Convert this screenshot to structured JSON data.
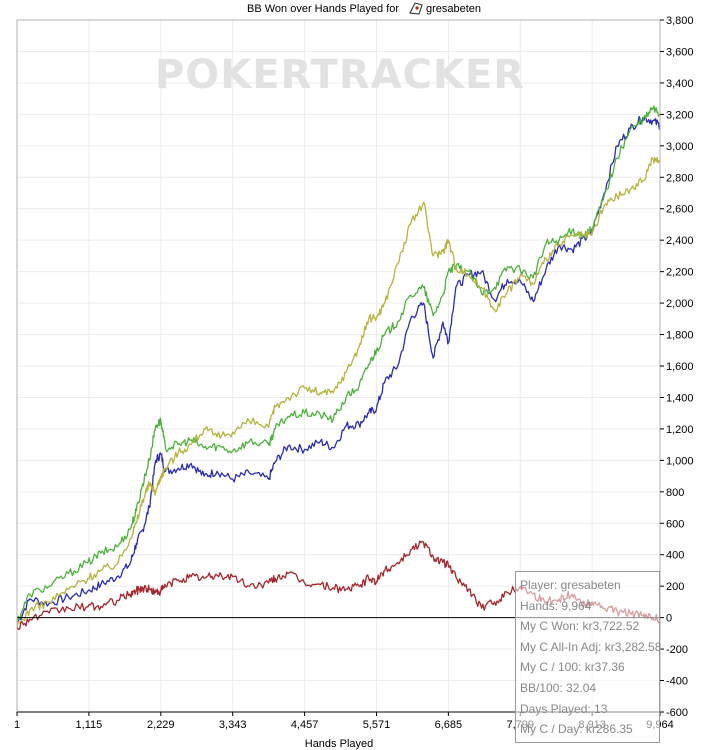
{
  "watermark": "POKERTRACKER",
  "info": {
    "player": "Player: gresabeten",
    "hands": "Hands: 9,964",
    "my_c_won": "My C Won: kr3,722.52",
    "my_c_allin_adj": "My C All-In Adj: kr3,282.58",
    "my_c_per_100": "My C / 100: kr37.36",
    "bb_per_100": "BB/100: 32.04",
    "days_played": "Days Played: 13",
    "my_c_per_day": "My C / Day: kr286.35"
  },
  "chart_data": {
    "type": "line",
    "title": "BB Won over Hands Played for gresabeten",
    "xlabel": "Hands Played",
    "ylabel": "",
    "xlim": [
      1,
      9964
    ],
    "ylim": [
      -600,
      3800
    ],
    "x_ticks": [
      "1",
      "1,115",
      "2,229",
      "3,343",
      "4,457",
      "5,571",
      "6,685",
      "7,799",
      "8,913",
      "9,964"
    ],
    "y_ticks": [
      "-600",
      "-400",
      "-200",
      "0",
      "200",
      "400",
      "600",
      "800",
      "1,000",
      "1,200",
      "1,400",
      "1,600",
      "1,800",
      "2,000",
      "2,200",
      "2,400",
      "2,600",
      "2,800",
      "3,000",
      "3,200",
      "3,400",
      "3,600",
      "3,800"
    ],
    "grid": true,
    "legend": "none",
    "series": [
      {
        "color": "#2b2db0",
        "x": [
          1,
          200,
          500,
          800,
          1100,
          1300,
          1550,
          1750,
          1850,
          1950,
          2050,
          2150,
          2229,
          2300,
          2500,
          2700,
          2900,
          3100,
          3343,
          3600,
          3900,
          4000,
          4200,
          4457,
          4700,
          4900,
          5100,
          5300,
          5450,
          5571,
          5700,
          5900,
          6100,
          6300,
          6450,
          6600,
          6685,
          6800,
          7000,
          7200,
          7400,
          7600,
          7800,
          8000,
          8200,
          8400,
          8600,
          8800,
          8913,
          9100,
          9300,
          9500,
          9700,
          9850,
          9964
        ],
        "y": [
          -40,
          120,
          90,
          130,
          170,
          210,
          260,
          340,
          470,
          560,
          700,
          1000,
          1040,
          930,
          950,
          980,
          900,
          930,
          880,
          920,
          880,
          990,
          1090,
          1070,
          1120,
          1080,
          1220,
          1230,
          1300,
          1330,
          1500,
          1600,
          1900,
          2000,
          1650,
          1880,
          1750,
          2100,
          2180,
          2200,
          2020,
          2150,
          2140,
          2010,
          2220,
          2370,
          2340,
          2410,
          2460,
          2700,
          3000,
          3110,
          3180,
          3160,
          3130
        ]
      },
      {
        "color": "#4db23d",
        "x": [
          1,
          200,
          500,
          800,
          1100,
          1300,
          1550,
          1750,
          1850,
          1950,
          2050,
          2150,
          2229,
          2300,
          2500,
          2700,
          2900,
          3100,
          3343,
          3600,
          3900,
          4000,
          4200,
          4457,
          4700,
          4900,
          5100,
          5300,
          5450,
          5571,
          5700,
          5900,
          6100,
          6300,
          6450,
          6600,
          6685,
          6800,
          7000,
          7200,
          7400,
          7600,
          7800,
          8000,
          8200,
          8400,
          8600,
          8800,
          8913,
          9100,
          9300,
          9500,
          9700,
          9850,
          9964
        ],
        "y": [
          -20,
          150,
          200,
          280,
          350,
          410,
          450,
          560,
          680,
          850,
          1000,
          1220,
          1250,
          1080,
          1100,
          1130,
          1080,
          1090,
          1060,
          1120,
          1100,
          1200,
          1280,
          1300,
          1290,
          1260,
          1400,
          1470,
          1610,
          1700,
          1800,
          1880,
          2050,
          2100,
          1920,
          2050,
          2200,
          2230,
          2200,
          2060,
          2100,
          2230,
          2210,
          2160,
          2380,
          2400,
          2460,
          2430,
          2470,
          2680,
          2920,
          3100,
          3160,
          3240,
          3200
        ]
      },
      {
        "color": "#b6b33e",
        "x": [
          1,
          200,
          500,
          800,
          1100,
          1300,
          1550,
          1750,
          1850,
          1950,
          2050,
          2150,
          2229,
          2300,
          2500,
          2700,
          2900,
          3100,
          3343,
          3600,
          3900,
          4000,
          4200,
          4457,
          4700,
          4900,
          5100,
          5300,
          5450,
          5571,
          5700,
          5900,
          6100,
          6300,
          6450,
          6600,
          6685,
          6800,
          7000,
          7200,
          7400,
          7600,
          7800,
          8000,
          8200,
          8400,
          8600,
          8800,
          8913,
          9100,
          9300,
          9500,
          9700,
          9850,
          9964
        ],
        "y": [
          -60,
          50,
          100,
          180,
          250,
          300,
          340,
          500,
          600,
          750,
          850,
          800,
          900,
          950,
          1050,
          1100,
          1200,
          1150,
          1180,
          1250,
          1210,
          1340,
          1400,
          1460,
          1430,
          1430,
          1560,
          1720,
          1900,
          1910,
          2000,
          2250,
          2500,
          2640,
          2300,
          2330,
          2400,
          2230,
          2180,
          2100,
          1960,
          2070,
          2180,
          2120,
          2280,
          2370,
          2430,
          2430,
          2440,
          2620,
          2680,
          2720,
          2780,
          2920,
          2890
        ]
      },
      {
        "color": "#a7262b",
        "x": [
          1,
          200,
          500,
          800,
          1100,
          1300,
          1550,
          1750,
          1850,
          1950,
          2050,
          2150,
          2229,
          2300,
          2500,
          2700,
          2900,
          3100,
          3343,
          3600,
          3900,
          4000,
          4200,
          4457,
          4700,
          4900,
          5100,
          5300,
          5450,
          5571,
          5700,
          5900,
          6100,
          6300,
          6450,
          6600,
          6685,
          6800,
          7000,
          7200,
          7400,
          7600,
          7800,
          8000,
          8200,
          8400,
          8600,
          8800,
          8913,
          9100,
          9300,
          9500,
          9700,
          9850,
          9964
        ],
        "y": [
          -60,
          -10,
          30,
          60,
          70,
          70,
          110,
          150,
          170,
          190,
          180,
          160,
          170,
          200,
          240,
          260,
          250,
          270,
          260,
          200,
          220,
          250,
          280,
          220,
          210,
          190,
          180,
          200,
          250,
          230,
          300,
          350,
          430,
          480,
          390,
          350,
          330,
          260,
          180,
          60,
          100,
          160,
          200,
          150,
          100,
          120,
          150,
          80,
          100,
          60,
          40,
          30,
          10,
          0,
          -10
        ]
      }
    ]
  }
}
